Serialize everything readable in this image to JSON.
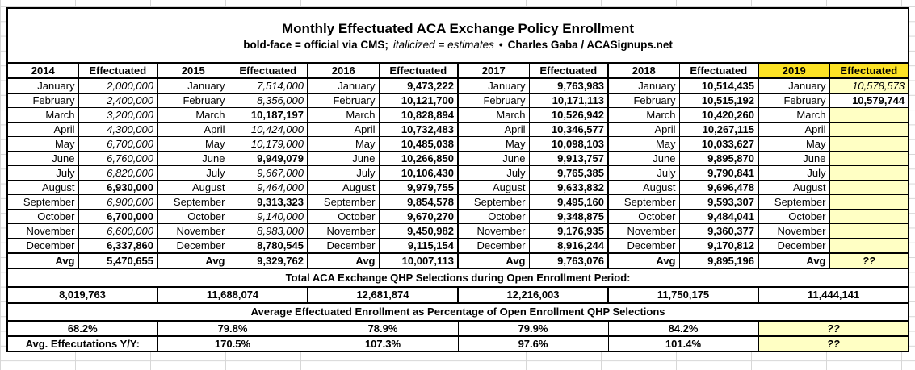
{
  "header": {
    "title": "Monthly Effectuated ACA Exchange Policy Enrollment",
    "legend_bold": "bold-face = official via CMS;",
    "legend_italic": "italicized = estimates",
    "separator": "•",
    "credit": "Charles Gaba / ACASignups.net"
  },
  "colors": {
    "highlight_strong": "#FCE225",
    "highlight_light": "#FFFFC4",
    "border": "#000000",
    "gridline": "#D7D7D7"
  },
  "chart_data": {
    "type": "table",
    "title": "Monthly Effectuated ACA Exchange Policy Enrollment",
    "subtitle": "bold-face = official via CMS; italicized = estimates • Charles Gaba / ACASignups.net",
    "effectuated_label": "Effectuated",
    "avg_label": "Avg",
    "qhp_heading": "Total ACA Exchange QHP Selections during Open Enrollment Period:",
    "pct_heading": "Average Effectuated Enrollment as Percentage of Open Enrollment QHP Selections",
    "yoy_label": "Avg. Effecutations Y/Y:",
    "unknown_marker": "??",
    "style_legend": {
      "b": "bold = official via CMS",
      "e": "italic = estimate",
      "ey": "italic estimate on light-yellow",
      "y": "empty light-yellow cell",
      "q": "unknown (??) on light-yellow"
    },
    "months": [
      "January",
      "February",
      "March",
      "April",
      "May",
      "June",
      "July",
      "August",
      "September",
      "October",
      "November",
      "December"
    ],
    "years": [
      {
        "year": "2014",
        "header_highlight": false,
        "values": [
          "2,000,000",
          "2,400,000",
          "3,200,000",
          "4,300,000",
          "6,700,000",
          "6,760,000",
          "6,820,000",
          "6,930,000",
          "6,900,000",
          "6,700,000",
          "6,600,000",
          "6,337,860"
        ],
        "value_styles": [
          "e",
          "e",
          "e",
          "e",
          "e",
          "e",
          "e",
          "b",
          "e",
          "b",
          "e",
          "b"
        ],
        "avg": "5,470,655",
        "avg_style": "b",
        "qhp_total": "8,019,763",
        "pct_of_qhp": "68.2%",
        "pct_style": "b",
        "yoy": null,
        "yoy_style": null
      },
      {
        "year": "2015",
        "header_highlight": false,
        "values": [
          "7,514,000",
          "8,356,000",
          "10,187,197",
          "10,424,000",
          "10,179,000",
          "9,949,079",
          "9,667,000",
          "9,464,000",
          "9,313,323",
          "9,140,000",
          "8,983,000",
          "8,780,545"
        ],
        "value_styles": [
          "e",
          "e",
          "b",
          "e",
          "e",
          "b",
          "e",
          "e",
          "b",
          "e",
          "e",
          "b"
        ],
        "avg": "9,329,762",
        "avg_style": "b",
        "qhp_total": "11,688,074",
        "pct_of_qhp": "79.8%",
        "pct_style": "b",
        "yoy": "170.5%",
        "yoy_style": "b"
      },
      {
        "year": "2016",
        "header_highlight": false,
        "values": [
          "9,473,222",
          "10,121,700",
          "10,828,894",
          "10,732,483",
          "10,485,038",
          "10,266,850",
          "10,106,430",
          "9,979,755",
          "9,854,578",
          "9,670,270",
          "9,450,982",
          "9,115,154"
        ],
        "value_styles": [
          "b",
          "b",
          "b",
          "b",
          "b",
          "b",
          "b",
          "b",
          "b",
          "b",
          "b",
          "b"
        ],
        "avg": "10,007,113",
        "avg_style": "b",
        "qhp_total": "12,681,874",
        "pct_of_qhp": "78.9%",
        "pct_style": "b",
        "yoy": "107.3%",
        "yoy_style": "b"
      },
      {
        "year": "2017",
        "header_highlight": false,
        "values": [
          "9,763,983",
          "10,171,113",
          "10,526,942",
          "10,346,577",
          "10,098,103",
          "9,913,757",
          "9,765,385",
          "9,633,832",
          "9,495,160",
          "9,348,875",
          "9,176,935",
          "8,916,244"
        ],
        "value_styles": [
          "b",
          "b",
          "b",
          "b",
          "b",
          "b",
          "b",
          "b",
          "b",
          "b",
          "b",
          "b"
        ],
        "avg": "9,763,076",
        "avg_style": "b",
        "qhp_total": "12,216,003",
        "pct_of_qhp": "79.9%",
        "pct_style": "b",
        "yoy": "97.6%",
        "yoy_style": "b"
      },
      {
        "year": "2018",
        "header_highlight": false,
        "values": [
          "10,514,435",
          "10,515,192",
          "10,420,260",
          "10,267,115",
          "10,033,627",
          "9,895,870",
          "9,790,841",
          "9,696,478",
          "9,593,307",
          "9,484,041",
          "9,360,377",
          "9,170,812"
        ],
        "value_styles": [
          "b",
          "b",
          "b",
          "b",
          "b",
          "b",
          "b",
          "b",
          "b",
          "b",
          "b",
          "b"
        ],
        "avg": "9,895,196",
        "avg_style": "b",
        "qhp_total": "11,750,175",
        "pct_of_qhp": "84.2%",
        "pct_style": "b",
        "yoy": "101.4%",
        "yoy_style": "b"
      },
      {
        "year": "2019",
        "header_highlight": true,
        "values": [
          "10,578,573",
          "10,579,744",
          "",
          "",
          "",
          "",
          "",
          "",
          "",
          "",
          "",
          ""
        ],
        "value_styles": [
          "ey",
          "b",
          "y",
          "y",
          "y",
          "y",
          "y",
          "y",
          "y",
          "y",
          "y",
          "y"
        ],
        "avg": "??",
        "avg_style": "q",
        "qhp_total": "11,444,141",
        "pct_of_qhp": "??",
        "pct_style": "q",
        "yoy": "??",
        "yoy_style": "q"
      }
    ]
  }
}
